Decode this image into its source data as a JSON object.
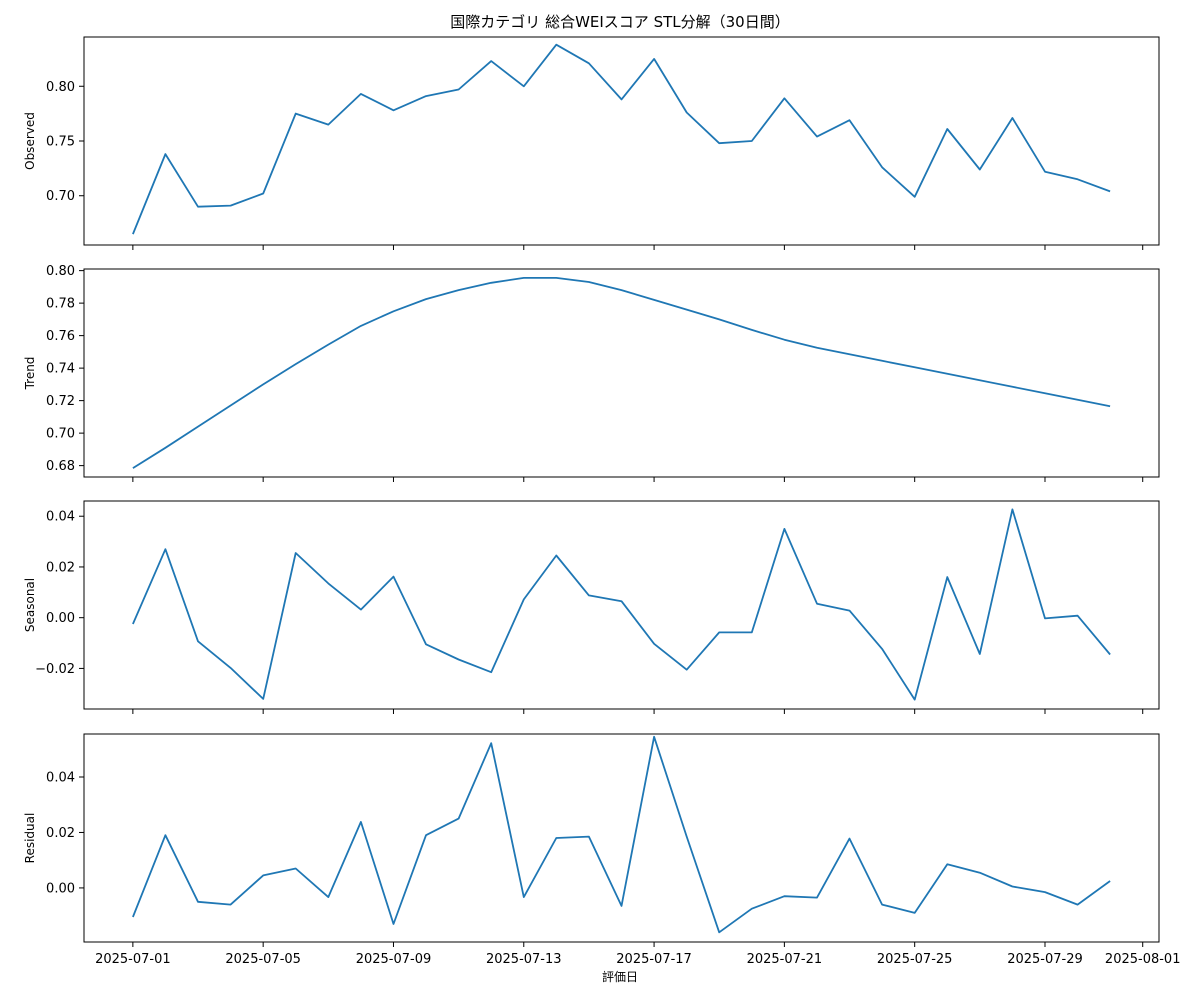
{
  "chart_data": {
    "type": "line",
    "title": "国際カテゴリ 総合WEIスコア STL分解（30日間）",
    "xlabel": "評価日",
    "x": [
      "2025-07-01",
      "2025-07-02",
      "2025-07-03",
      "2025-07-04",
      "2025-07-05",
      "2025-07-06",
      "2025-07-07",
      "2025-07-08",
      "2025-07-09",
      "2025-07-10",
      "2025-07-11",
      "2025-07-12",
      "2025-07-13",
      "2025-07-14",
      "2025-07-15",
      "2025-07-16",
      "2025-07-17",
      "2025-07-18",
      "2025-07-19",
      "2025-07-20",
      "2025-07-21",
      "2025-07-22",
      "2025-07-23",
      "2025-07-24",
      "2025-07-25",
      "2025-07-26",
      "2025-07-27",
      "2025-07-28",
      "2025-07-29",
      "2025-07-30",
      "2025-07-31"
    ],
    "x_ticks": [
      "2025-07-01",
      "2025-07-05",
      "2025-07-09",
      "2025-07-13",
      "2025-07-17",
      "2025-07-21",
      "2025-07-25",
      "2025-07-29",
      "2025-08-01"
    ],
    "line_color": "#1f77b4",
    "grid": false,
    "panels": [
      {
        "ylabel": "Observed",
        "ylim": [
          0.655,
          0.845
        ],
        "yticks": [
          "0.70",
          "0.75",
          "0.80"
        ],
        "values": [
          0.665,
          0.738,
          0.69,
          0.691,
          0.702,
          0.775,
          0.765,
          0.793,
          0.778,
          0.791,
          0.797,
          0.823,
          0.8,
          0.838,
          0.821,
          0.788,
          0.825,
          0.776,
          0.748,
          0.75,
          0.789,
          0.754,
          0.769,
          0.726,
          0.699,
          0.761,
          0.724,
          0.771,
          0.722,
          0.715,
          0.704
        ]
      },
      {
        "ylabel": "Trend",
        "ylim": [
          0.673,
          0.801
        ],
        "yticks": [
          "0.68",
          "0.70",
          "0.72",
          "0.74",
          "0.76",
          "0.78",
          "0.80"
        ],
        "values": [
          0.6785,
          0.691,
          0.704,
          0.717,
          0.73,
          0.7425,
          0.7545,
          0.766,
          0.775,
          0.7825,
          0.788,
          0.7925,
          0.7955,
          0.7955,
          0.793,
          0.788,
          0.782,
          0.776,
          0.77,
          0.7635,
          0.7575,
          0.7525,
          0.7485,
          0.7445,
          0.7405,
          0.7365,
          0.7325,
          0.7285,
          0.7245,
          0.7205,
          0.7165
        ]
      },
      {
        "ylabel": "Seasonal",
        "ylim": [
          -0.036,
          0.046
        ],
        "yticks": [
          "−0.02",
          "0.00",
          "0.02",
          "0.04"
        ],
        "values": [
          -0.0025,
          0.027,
          -0.0093,
          -0.0198,
          -0.032,
          0.0255,
          0.0135,
          0.0032,
          0.0162,
          -0.0105,
          -0.0165,
          -0.0215,
          0.0072,
          0.0245,
          0.0088,
          0.0065,
          -0.0103,
          -0.0205,
          -0.0058,
          -0.0058,
          0.035,
          0.0055,
          0.0028,
          -0.0123,
          -0.0323,
          0.016,
          -0.0143,
          0.0427,
          -0.0003,
          0.0008,
          -0.0145
        ]
      },
      {
        "ylabel": "Residual",
        "ylim": [
          -0.0195,
          0.0555
        ],
        "yticks": [
          "0.00",
          "0.02",
          "0.04"
        ],
        "values": [
          -0.0105,
          0.019,
          -0.005,
          -0.006,
          0.0045,
          0.007,
          -0.0033,
          0.0238,
          -0.013,
          0.019,
          0.025,
          0.0522,
          -0.0033,
          0.018,
          0.0185,
          -0.0065,
          0.0545,
          0.0185,
          -0.016,
          -0.0075,
          -0.003,
          -0.0035,
          0.0178,
          -0.006,
          -0.009,
          0.0085,
          0.0055,
          0.0005,
          -0.0015,
          -0.006,
          0.0025
        ]
      }
    ]
  }
}
